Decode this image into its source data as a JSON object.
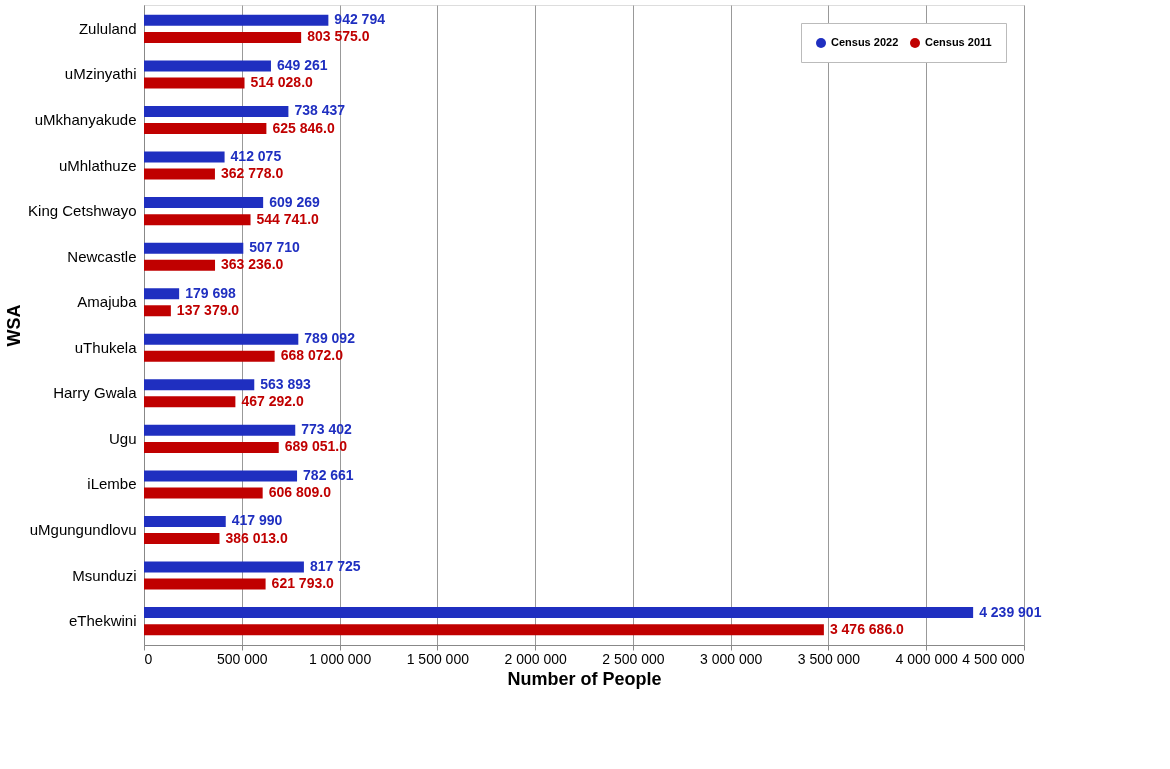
{
  "chart_data": {
    "type": "bar",
    "orientation": "horizontal",
    "xlabel": "Number of People",
    "ylabel": "WSA",
    "categories": [
      "Zululand",
      "uMzinyathi",
      "uMkhanyakude",
      "uMhlathuze",
      "King Cetshwayo",
      "Newcastle",
      "Amajuba",
      "uThukela",
      "Harry Gwala",
      "Ugu",
      "iLembe",
      "uMgungundlovu",
      "Msunduzi",
      "eThekwini"
    ],
    "series": [
      {
        "name": "Census 2022",
        "color": "#1f2fc0",
        "values": [
          942794,
          649261,
          738437,
          412075,
          609269,
          507710,
          179698,
          789092,
          563893,
          773402,
          782661,
          417990,
          817725,
          4239901
        ],
        "value_labels": [
          "942 794",
          "649 261",
          "738 437",
          "412 075",
          "609 269",
          "507 710",
          "179 698",
          "789 092",
          "563 893",
          "773 402",
          "782 661",
          "417 990",
          "817 725",
          "4 239 901"
        ]
      },
      {
        "name": "Census 2011",
        "color": "#c00000",
        "values": [
          803575,
          514028,
          625846,
          362778,
          544741,
          363236,
          137379,
          668072,
          467292,
          689051,
          606809,
          386013,
          621793,
          3476686
        ],
        "value_labels": [
          "803 575.0",
          "514 028.0",
          "625 846.0",
          "362 778.0",
          "544 741.0",
          "363 236.0",
          "137 379.0",
          "668 072.0",
          "467 292.0",
          "689 051.0",
          "606 809.0",
          "386 013.0",
          "621 793.0",
          "3 476 686.0"
        ]
      }
    ],
    "xlim": [
      0,
      4500000
    ],
    "xticks": [
      0,
      {
        "value": 500000,
        "label": "500 000"
      },
      {
        "value": 1000000,
        "label": "1 000 000"
      },
      {
        "value": 1500000,
        "label": "1 500 000"
      },
      {
        "value": 2000000,
        "label": "2 000 000"
      },
      {
        "value": 2500000,
        "label": "2 500 000"
      },
      {
        "value": 3000000,
        "label": "3 000 000"
      },
      {
        "value": 3500000,
        "label": "3 500 000"
      },
      {
        "value": 4000000,
        "label": "4 000 000"
      },
      {
        "value": 4500000,
        "label": "4 500 000"
      }
    ],
    "grid": "x",
    "legend": "top right"
  }
}
